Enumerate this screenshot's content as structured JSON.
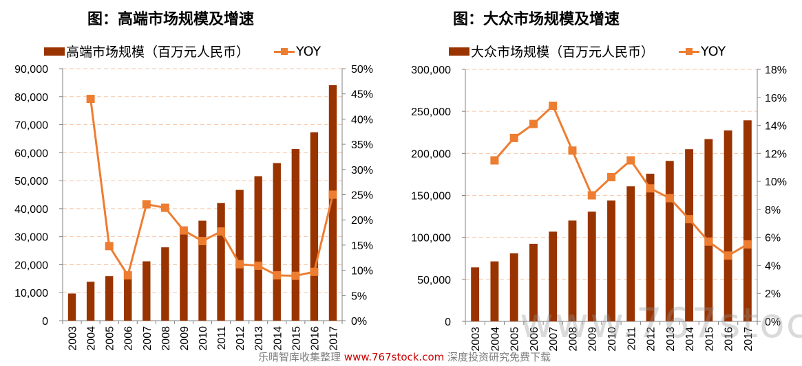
{
  "chart_data": [
    {
      "type": "bar+line",
      "title": "图：高端市场规模及增速",
      "legend_position": "top",
      "categories": [
        "2003",
        "2004",
        "2005",
        "2006",
        "2007",
        "2008",
        "2009",
        "2010",
        "2011",
        "2012",
        "2013",
        "2014",
        "2015",
        "2016",
        "2017"
      ],
      "series": [
        {
          "name": "高端市场规模（百万元人民币）",
          "type": "bar",
          "axis": "left",
          "color": "#993300",
          "values": [
            9700,
            13900,
            15900,
            17000,
            21200,
            26200,
            31000,
            35700,
            42000,
            46700,
            51600,
            56300,
            61300,
            67300,
            84100
          ]
        },
        {
          "name": "YOY",
          "type": "line",
          "axis": "right",
          "color": "#ED7D31",
          "values": [
            null,
            44.0,
            14.8,
            9.0,
            23.1,
            22.4,
            17.9,
            15.8,
            17.7,
            11.2,
            10.9,
            9.0,
            8.9,
            9.7,
            25.0
          ]
        }
      ],
      "y_left": {
        "min": 0,
        "max": 90000,
        "step": 10000,
        "tick_labels": [
          "0",
          "10,000",
          "20,000",
          "30,000",
          "40,000",
          "50,000",
          "60,000",
          "70,000",
          "80,000",
          "90,000"
        ]
      },
      "y_right": {
        "min": 0,
        "max": 50,
        "step": 5,
        "tick_labels": [
          "0%",
          "5%",
          "10%",
          "15%",
          "20%",
          "25%",
          "30%",
          "35%",
          "40%",
          "45%",
          "50%"
        ]
      },
      "x_tick_labels": [
        "2003",
        "2004",
        "2005",
        "2006",
        "2007",
        "2008",
        "2009",
        "2010",
        "2011",
        "2012",
        "2013",
        "2014",
        "2015",
        "2016",
        "2017"
      ],
      "grid": true
    },
    {
      "type": "bar+line",
      "title": "图：大众市场规模及增速",
      "legend_position": "top",
      "categories": [
        "2003",
        "2004",
        "2005",
        "2006",
        "2007",
        "2008",
        "2009",
        "2010",
        "2011",
        "2012",
        "2013",
        "2014",
        "2015",
        "2016",
        "2017"
      ],
      "series": [
        {
          "name": "大众市场规模（百万元人民币）",
          "type": "bar",
          "axis": "left",
          "color": "#993300",
          "values": [
            64300,
            71400,
            81000,
            92400,
            106800,
            120000,
            130600,
            143900,
            160800,
            175800,
            191000,
            205000,
            217000,
            227300,
            239300
          ]
        },
        {
          "name": "YOY",
          "type": "line",
          "axis": "right",
          "color": "#ED7D31",
          "values": [
            null,
            11.5,
            13.1,
            14.1,
            15.4,
            12.2,
            9.0,
            10.3,
            11.5,
            9.5,
            8.8,
            7.3,
            5.7,
            4.7,
            5.5
          ]
        }
      ],
      "y_left": {
        "min": 0,
        "max": 300000,
        "step": 50000,
        "tick_labels": [
          "0",
          "50,000",
          "100,000",
          "150,000",
          "200,000",
          "250,000",
          "300,000"
        ]
      },
      "y_right": {
        "min": 0,
        "max": 18,
        "step": 2,
        "tick_labels": [
          "0%",
          "2%",
          "4%",
          "6%",
          "8%",
          "10%",
          "12%",
          "14%",
          "16%",
          "18%"
        ]
      },
      "x_tick_labels": [
        "2003",
        "2004",
        "2005",
        "2006",
        "2007",
        "2008",
        "2009",
        "2010",
        "2011",
        "2012",
        "2013",
        "2014",
        "2015",
        "2016",
        "2017"
      ],
      "grid": true
    }
  ],
  "legend": {
    "left_bar": "高端市场规模（百万元人民币）",
    "right_bar": "大众市场规模（百万元人民币）",
    "line": "YOY"
  },
  "titles": {
    "left": "图：高端市场规模及增速",
    "right": "图：大众市场规模及增速"
  },
  "watermark": {
    "prefix": "乐晴智库收集整理",
    "url": "www.767stock.com",
    "suffix": "深度投资研究免费下载",
    "big": "www.767stock.com"
  },
  "colors": {
    "bar": "#993300",
    "line": "#ED7D31",
    "grid": "#F4C7A8",
    "axis": "#808080"
  }
}
